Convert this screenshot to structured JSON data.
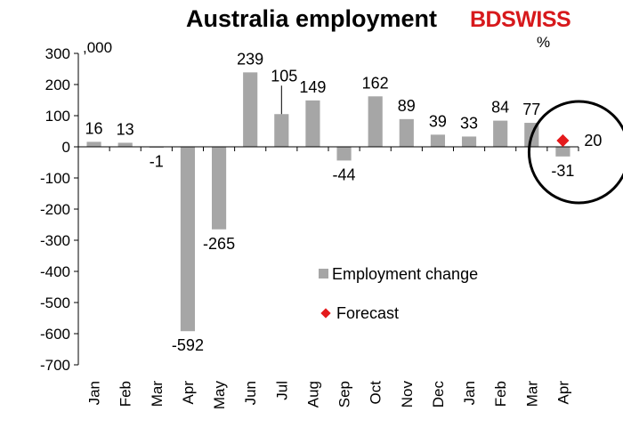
{
  "chart_data": {
    "type": "bar",
    "title": "Australia employment",
    "unit_left": ",000",
    "unit_right": "%",
    "categories": [
      "Jan",
      "Feb",
      "Mar",
      "Apr",
      "May",
      "Jun",
      "Jul",
      "Aug",
      "Sep",
      "Oct",
      "Nov",
      "Dec",
      "Jan",
      "Feb",
      "Mar",
      "Apr"
    ],
    "series": [
      {
        "name": "Employment change",
        "type": "bar",
        "color": "#a6a6a6",
        "values": [
          16,
          13,
          -1,
          -592,
          -265,
          239,
          105,
          149,
          -44,
          162,
          89,
          39,
          33,
          84,
          77,
          -31
        ]
      },
      {
        "name": "Forecast",
        "type": "marker",
        "color": "#e41a1c",
        "values": [
          null,
          null,
          null,
          null,
          null,
          null,
          null,
          null,
          null,
          null,
          null,
          null,
          null,
          null,
          null,
          20
        ]
      }
    ],
    "data_labels": [
      "16",
      "13",
      "-1",
      "-592",
      "-265",
      "239",
      "105",
      "149",
      "-44",
      "162",
      "89",
      "39",
      "33",
      "84",
      "77",
      "-31"
    ],
    "forecast_label": "20",
    "ylim": [
      -700,
      300
    ],
    "yticks": [
      300,
      200,
      100,
      0,
      -100,
      -200,
      -300,
      -400,
      -500,
      -600,
      -700
    ],
    "legend": {
      "position": "inside-lower-right",
      "items": [
        "Employment change",
        "Forecast"
      ]
    },
    "annotation": "circle around Apr forecast"
  },
  "brand": {
    "part1": "BD",
    "part2": "SWISS"
  }
}
